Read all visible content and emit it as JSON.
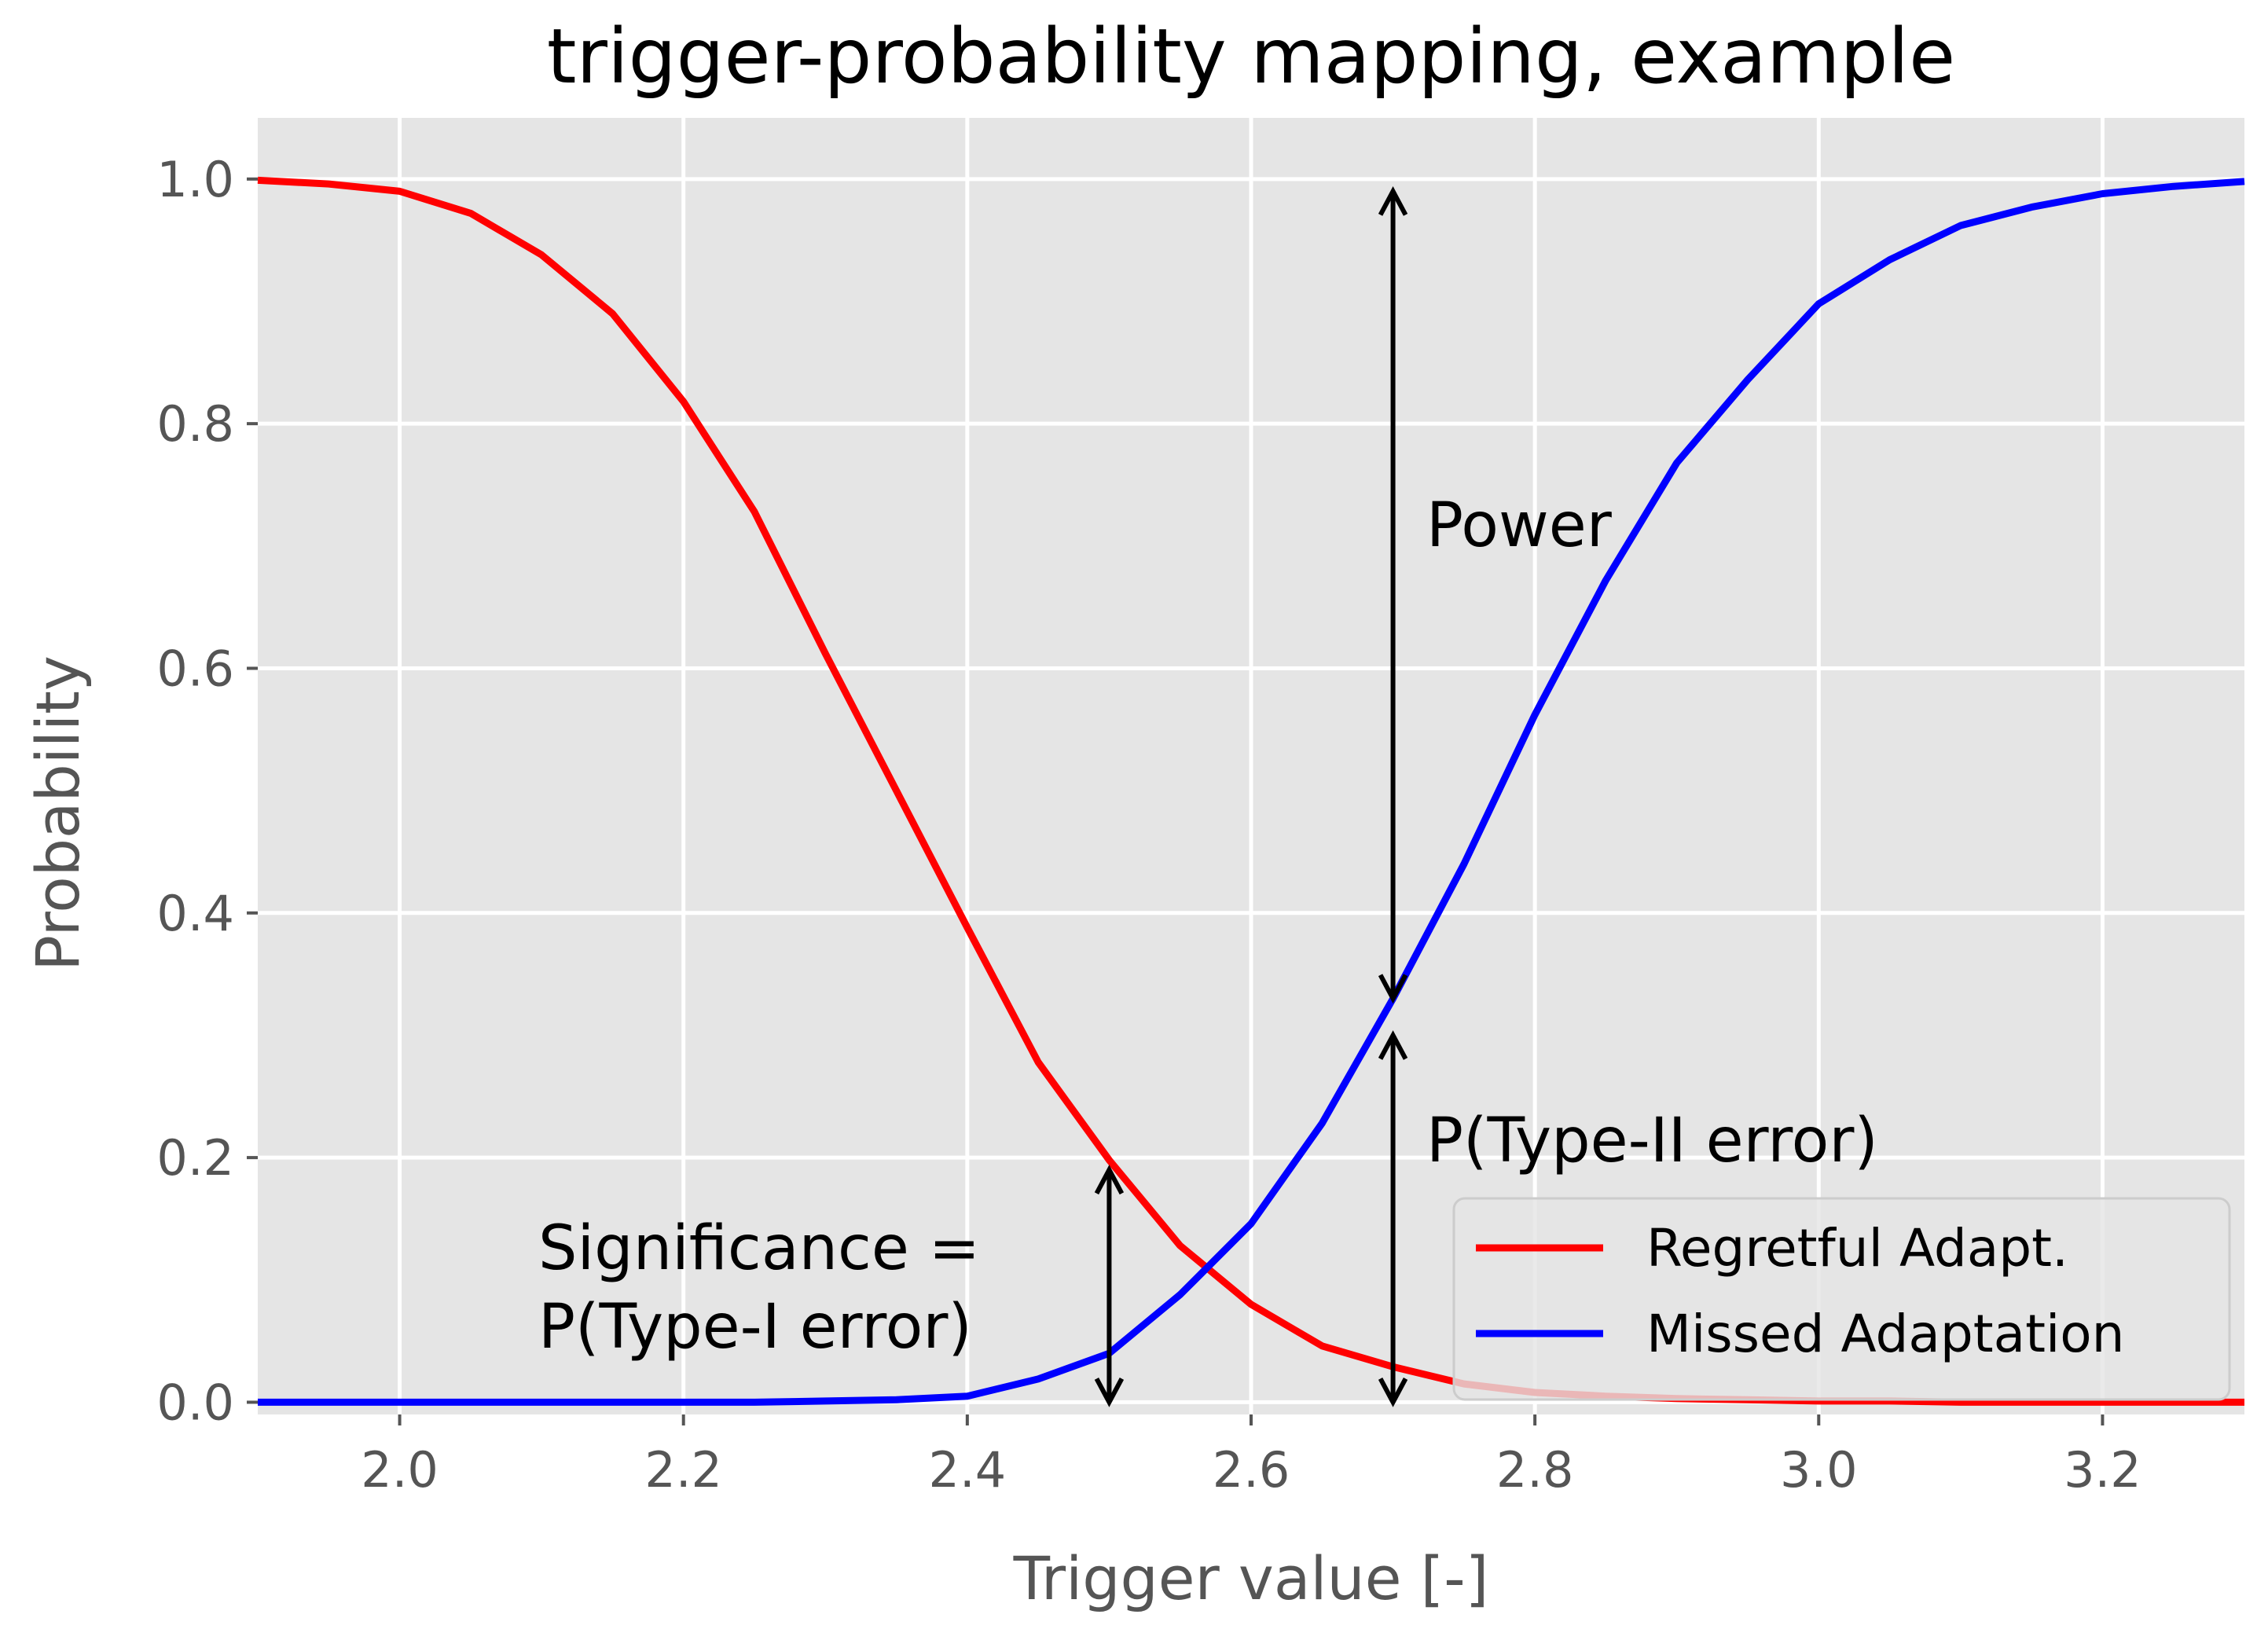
{
  "chart_data": {
    "type": "line",
    "title": "trigger-probability mapping, example",
    "xlabel": "Trigger value [-]",
    "ylabel": "Probability",
    "xlim": [
      1.9,
      3.3
    ],
    "ylim": [
      -0.01,
      1.05
    ],
    "xticks": [
      "2.0",
      "2.2",
      "2.4",
      "2.6",
      "2.8",
      "3.0",
      "3.2"
    ],
    "yticks": [
      "0.0",
      "0.2",
      "0.4",
      "0.6",
      "0.8",
      "1.0"
    ],
    "grid": true,
    "background": "#e5e5e5",
    "legend_position": "lower-right",
    "x": [
      1.9,
      1.95,
      2.0,
      2.05,
      2.1,
      2.15,
      2.2,
      2.25,
      2.3,
      2.35,
      2.4,
      2.45,
      2.5,
      2.55,
      2.6,
      2.65,
      2.7,
      2.75,
      2.8,
      2.85,
      2.9,
      2.95,
      3.0,
      3.05,
      3.1,
      3.15,
      3.2,
      3.25,
      3.3
    ],
    "series": [
      {
        "name": "Regretful Adapt.",
        "color": "#ff0000",
        "values": [
          0.999,
          0.996,
          0.99,
          0.972,
          0.938,
          0.89,
          0.818,
          0.728,
          0.612,
          0.5,
          0.388,
          0.278,
          0.198,
          0.128,
          0.08,
          0.046,
          0.029,
          0.015,
          0.008,
          0.005,
          0.003,
          0.002,
          0.001,
          0.001,
          0.0,
          0.0,
          0.0,
          0.0,
          0.0
        ]
      },
      {
        "name": "Missed Adaptation",
        "color": "#0000ff",
        "values": [
          0.0,
          0.0,
          0.0,
          0.0,
          0.0,
          0.0,
          0.0,
          0.0,
          0.001,
          0.002,
          0.005,
          0.019,
          0.04,
          0.088,
          0.146,
          0.228,
          0.33,
          0.44,
          0.562,
          0.672,
          0.768,
          0.836,
          0.898,
          0.934,
          0.962,
          0.977,
          0.988,
          0.994,
          0.998
        ]
      }
    ],
    "annotations": [
      {
        "text": "Power",
        "arrow_x": 2.7,
        "arrow_from": 0.33,
        "arrow_to": 0.99
      },
      {
        "text": "P(Type-II error)",
        "arrow_x": 2.7,
        "arrow_from": 0.0,
        "arrow_to": 0.3
      },
      {
        "text_lines": [
          "Significance =",
          "P(Type-I error)"
        ],
        "arrow_x": 2.5,
        "arrow_from": 0.0,
        "arrow_to": 0.19
      }
    ]
  }
}
